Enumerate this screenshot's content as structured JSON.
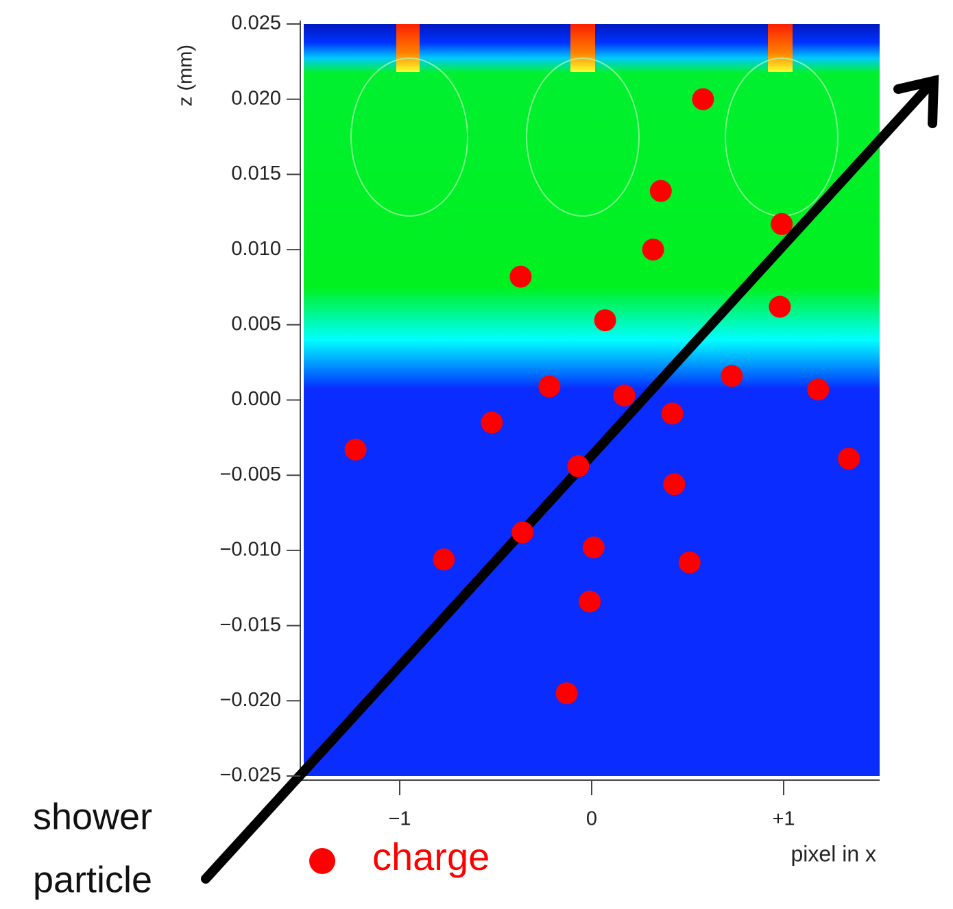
{
  "chart_data": {
    "type": "scatter",
    "x_label": "pixel in x",
    "y_label": "z (mm)",
    "annotation": [
      "shower",
      "particle"
    ],
    "xlim": [
      -1.5,
      1.5
    ],
    "ylim": [
      -0.025,
      0.025
    ],
    "xticks": [
      {
        "value": -1,
        "label": "−1"
      },
      0,
      {
        "value": 1,
        "label": "+1"
      }
    ],
    "yticks": [
      {
        "value": 0.025,
        "label": "0.025"
      },
      {
        "value": 0.02,
        "label": "0.020"
      },
      {
        "value": 0.015,
        "label": "0.015"
      },
      {
        "value": 0.01,
        "label": "0.010"
      },
      {
        "value": 0.005,
        "label": "0.005"
      },
      {
        "value": 0,
        "label": "0.000"
      },
      {
        "value": -0.005,
        "label": "−0.005"
      },
      {
        "value": -0.01,
        "label": "−0.010"
      },
      {
        "value": -0.015,
        "label": "−0.015"
      },
      {
        "value": -0.02,
        "label": "−0.020"
      },
      {
        "value": -0.025,
        "label": "−0.025"
      }
    ],
    "series": [
      {
        "name": "charge",
        "color": "#ff0000",
        "x": [
          0.58,
          0.36,
          0.99,
          0.32,
          -0.37,
          0.98,
          0.07,
          0.73,
          -0.22,
          1.18,
          0.17,
          0.42,
          -0.52,
          -1.23,
          1.34,
          -0.07,
          0.43,
          -0.36,
          -0.77,
          0.01,
          0.51,
          -0.01,
          -0.13
        ],
        "y": [
          0.02,
          0.0139,
          0.0117,
          0.01,
          0.0082,
          0.0062,
          0.0053,
          0.0016,
          0.0009,
          0.0007,
          0.0003,
          -0.0009,
          -0.0015,
          -0.0033,
          -0.0039,
          -0.0044,
          -0.0056,
          -0.0088,
          -0.0106,
          -0.0098,
          -0.0108,
          -0.0134,
          -0.0195
        ]
      }
    ]
  }
}
